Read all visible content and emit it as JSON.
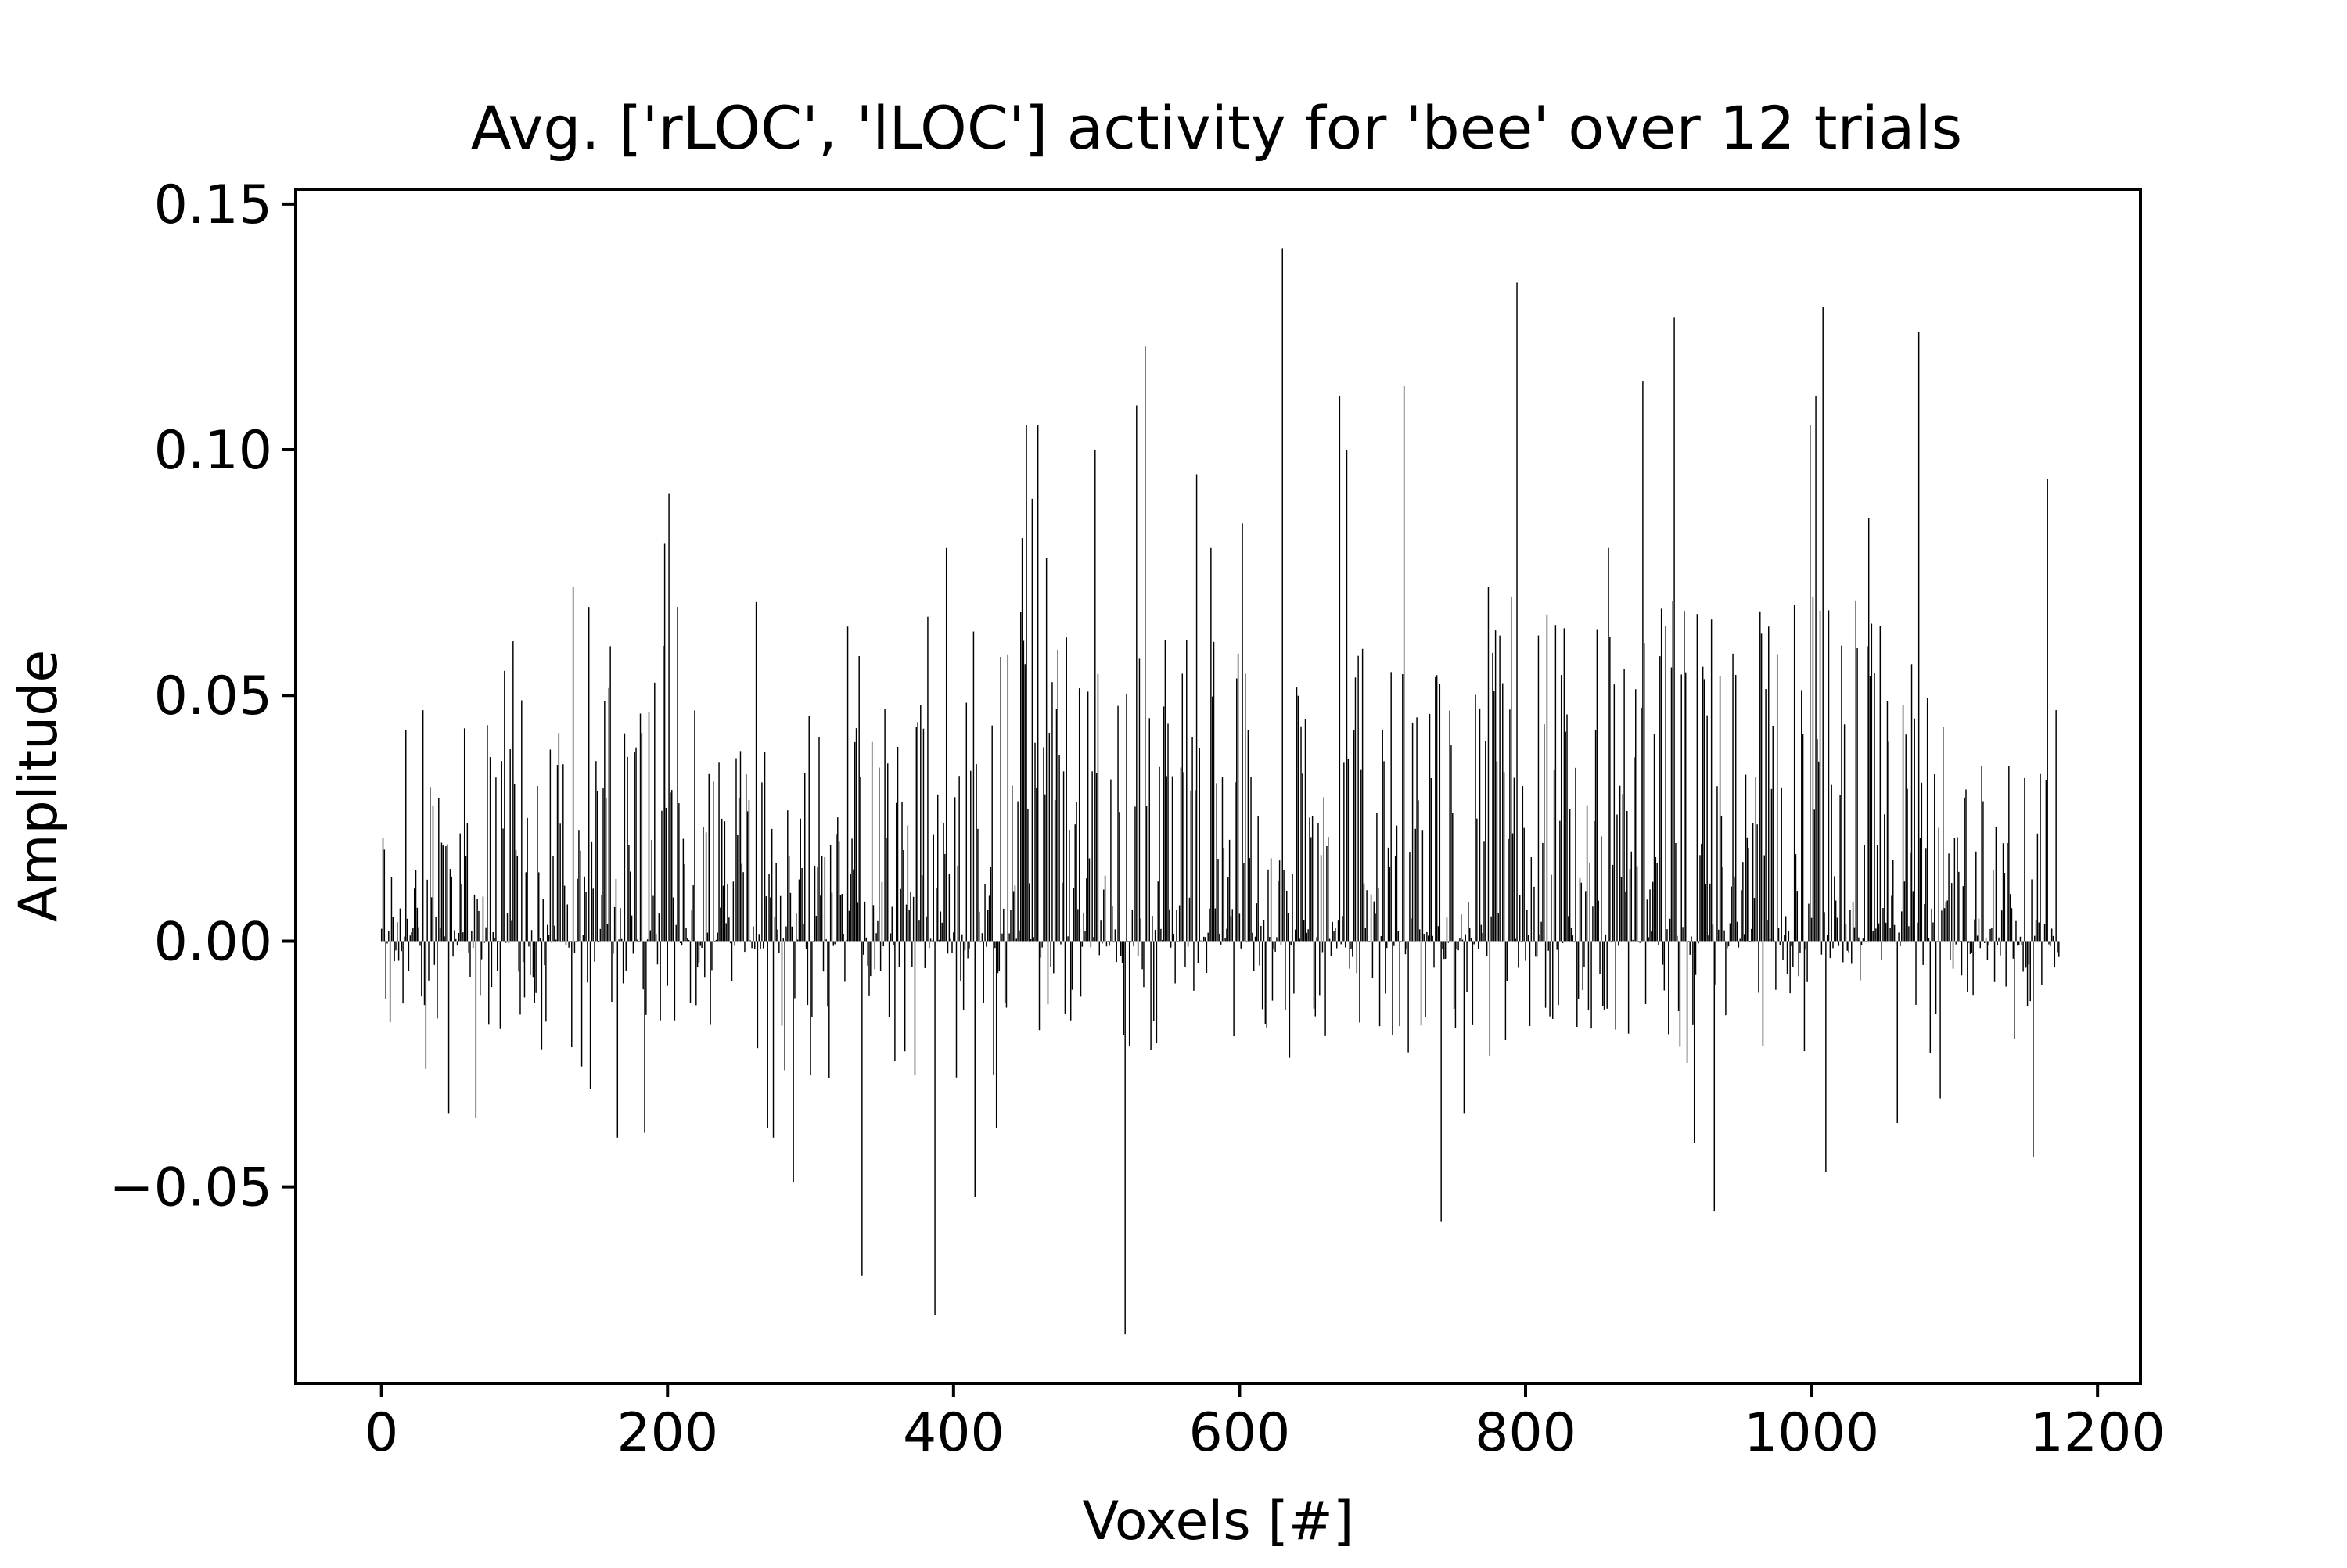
{
  "chart_data": {
    "type": "bar",
    "title": "Avg. ['rLOC', 'lLOC'] activity for 'bee' over 12 trials",
    "xlabel": "Voxels [#]",
    "ylabel": "Amplitude",
    "xlim": [
      -60,
      1230
    ],
    "ylim": [
      -0.09,
      0.153
    ],
    "xticks": [
      0,
      200,
      400,
      600,
      800,
      1000,
      1200
    ],
    "xtick_labels": [
      "0",
      "200",
      "400",
      "600",
      "800",
      "1000",
      "1200"
    ],
    "yticks": [
      -0.05,
      0.0,
      0.05,
      0.1,
      0.15
    ],
    "ytick_labels": [
      "−0.05",
      "0.00",
      "0.05",
      "0.10",
      "0.15"
    ],
    "grid": false,
    "bar_color": "#000000",
    "n_bars": 1174,
    "x_start": 0,
    "x_step": 1,
    "noise_seed": 12345,
    "noise_amplitude": 0.012,
    "envelope": [
      {
        "x": 0,
        "pos": 0.022,
        "neg": -0.02
      },
      {
        "x": 50,
        "pos": 0.045,
        "neg": -0.03
      },
      {
        "x": 100,
        "pos": 0.05,
        "neg": -0.025
      },
      {
        "x": 150,
        "pos": 0.055,
        "neg": -0.035
      },
      {
        "x": 200,
        "pos": 0.06,
        "neg": -0.02
      },
      {
        "x": 250,
        "pos": 0.05,
        "neg": -0.03
      },
      {
        "x": 300,
        "pos": 0.045,
        "neg": -0.03
      },
      {
        "x": 350,
        "pos": 0.05,
        "neg": -0.03
      },
      {
        "x": 400,
        "pos": 0.055,
        "neg": -0.03
      },
      {
        "x": 450,
        "pos": 0.07,
        "neg": -0.025
      },
      {
        "x": 500,
        "pos": 0.06,
        "neg": -0.02
      },
      {
        "x": 550,
        "pos": 0.065,
        "neg": -0.025
      },
      {
        "x": 600,
        "pos": 0.06,
        "neg": -0.02
      },
      {
        "x": 650,
        "pos": 0.06,
        "neg": -0.025
      },
      {
        "x": 700,
        "pos": 0.06,
        "neg": -0.02
      },
      {
        "x": 750,
        "pos": 0.06,
        "neg": -0.025
      },
      {
        "x": 800,
        "pos": 0.07,
        "neg": -0.02
      },
      {
        "x": 850,
        "pos": 0.065,
        "neg": -0.02
      },
      {
        "x": 900,
        "pos": 0.075,
        "neg": -0.025
      },
      {
        "x": 950,
        "pos": 0.065,
        "neg": -0.025
      },
      {
        "x": 1000,
        "pos": 0.08,
        "neg": -0.025
      },
      {
        "x": 1050,
        "pos": 0.07,
        "neg": -0.025
      },
      {
        "x": 1100,
        "pos": 0.045,
        "neg": -0.02
      },
      {
        "x": 1174,
        "pos": 0.03,
        "neg": -0.02
      }
    ],
    "peaks": [
      {
        "x": 1,
        "y": 0.021
      },
      {
        "x": 17,
        "y": 0.043
      },
      {
        "x": 29,
        "y": 0.047
      },
      {
        "x": 47,
        "y": -0.035
      },
      {
        "x": 66,
        "y": -0.036
      },
      {
        "x": 86,
        "y": 0.055
      },
      {
        "x": 92,
        "y": 0.061
      },
      {
        "x": 98,
        "y": 0.049
      },
      {
        "x": 112,
        "y": -0.022
      },
      {
        "x": 134,
        "y": 0.072
      },
      {
        "x": 145,
        "y": 0.068
      },
      {
        "x": 160,
        "y": 0.06
      },
      {
        "x": 165,
        "y": -0.04
      },
      {
        "x": 184,
        "y": -0.039
      },
      {
        "x": 198,
        "y": 0.081
      },
      {
        "x": 201,
        "y": 0.091
      },
      {
        "x": 207,
        "y": 0.068
      },
      {
        "x": 262,
        "y": 0.069
      },
      {
        "x": 270,
        "y": -0.038
      },
      {
        "x": 274,
        "y": -0.04
      },
      {
        "x": 288,
        "y": -0.049
      },
      {
        "x": 326,
        "y": 0.064
      },
      {
        "x": 334,
        "y": 0.058
      },
      {
        "x": 336,
        "y": -0.068
      },
      {
        "x": 382,
        "y": 0.066
      },
      {
        "x": 387,
        "y": -0.076
      },
      {
        "x": 395,
        "y": 0.08
      },
      {
        "x": 414,
        "y": 0.063
      },
      {
        "x": 415,
        "y": -0.052
      },
      {
        "x": 430,
        "y": -0.038
      },
      {
        "x": 448,
        "y": 0.082
      },
      {
        "x": 451,
        "y": 0.105
      },
      {
        "x": 455,
        "y": 0.09
      },
      {
        "x": 459,
        "y": 0.105
      },
      {
        "x": 465,
        "y": 0.078
      },
      {
        "x": 499,
        "y": 0.1
      },
      {
        "x": 520,
        "y": -0.08
      },
      {
        "x": 528,
        "y": 0.109
      },
      {
        "x": 534,
        "y": 0.121
      },
      {
        "x": 570,
        "y": 0.095
      },
      {
        "x": 580,
        "y": 0.08
      },
      {
        "x": 602,
        "y": 0.085
      },
      {
        "x": 630,
        "y": 0.141
      },
      {
        "x": 670,
        "y": 0.111
      },
      {
        "x": 675,
        "y": 0.1
      },
      {
        "x": 715,
        "y": 0.113
      },
      {
        "x": 741,
        "y": -0.057
      },
      {
        "x": 757,
        "y": -0.035
      },
      {
        "x": 774,
        "y": 0.072
      },
      {
        "x": 790,
        "y": 0.07
      },
      {
        "x": 794,
        "y": 0.134
      },
      {
        "x": 858,
        "y": 0.08
      },
      {
        "x": 882,
        "y": 0.114
      },
      {
        "x": 904,
        "y": 0.127
      },
      {
        "x": 918,
        "y": -0.041
      },
      {
        "x": 932,
        "y": -0.055
      },
      {
        "x": 970,
        "y": 0.064
      },
      {
        "x": 999,
        "y": 0.105
      },
      {
        "x": 1003,
        "y": 0.111
      },
      {
        "x": 1008,
        "y": 0.129
      },
      {
        "x": 1010,
        "y": -0.047
      },
      {
        "x": 1040,
        "y": 0.086
      },
      {
        "x": 1060,
        "y": -0.037
      },
      {
        "x": 1075,
        "y": 0.124
      },
      {
        "x": 1090,
        "y": -0.032
      },
      {
        "x": 1155,
        "y": -0.044
      },
      {
        "x": 1165,
        "y": 0.094
      },
      {
        "x": 1171,
        "y": 0.047
      }
    ]
  }
}
